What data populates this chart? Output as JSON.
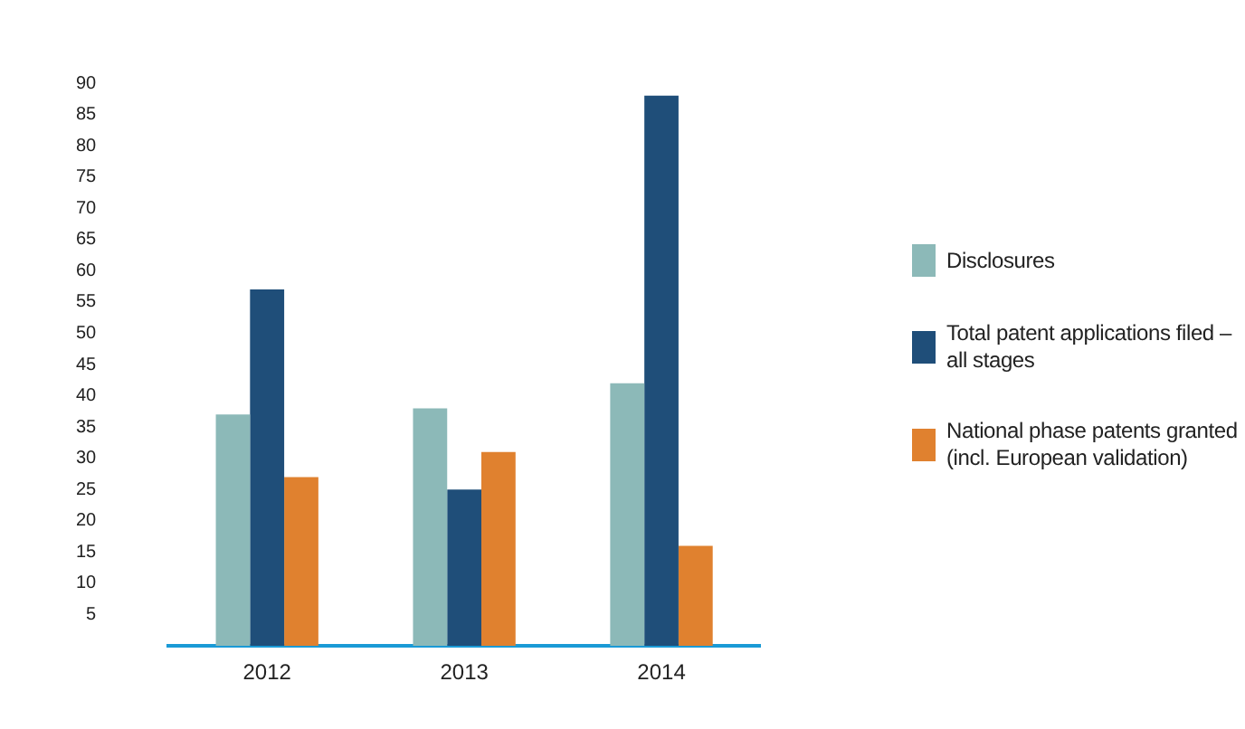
{
  "chart_data": {
    "type": "bar",
    "categories": [
      "2012",
      "2013",
      "2014"
    ],
    "series": [
      {
        "name": "Disclosures",
        "color": "#8cb9b8",
        "values": [
          37,
          38,
          42
        ]
      },
      {
        "name": "Total patent applications filed – all stages",
        "color": "#1f4e79",
        "values": [
          57,
          25,
          88
        ]
      },
      {
        "name": "National phase patents granted (incl. European validation)",
        "color": "#e0812f",
        "values": [
          27,
          31,
          16
        ]
      }
    ],
    "ylim": [
      0,
      90
    ],
    "yticks": [
      5,
      10,
      15,
      20,
      25,
      30,
      35,
      40,
      45,
      50,
      55,
      60,
      65,
      70,
      75,
      80,
      85,
      90
    ],
    "grid": false,
    "legend": "right"
  }
}
